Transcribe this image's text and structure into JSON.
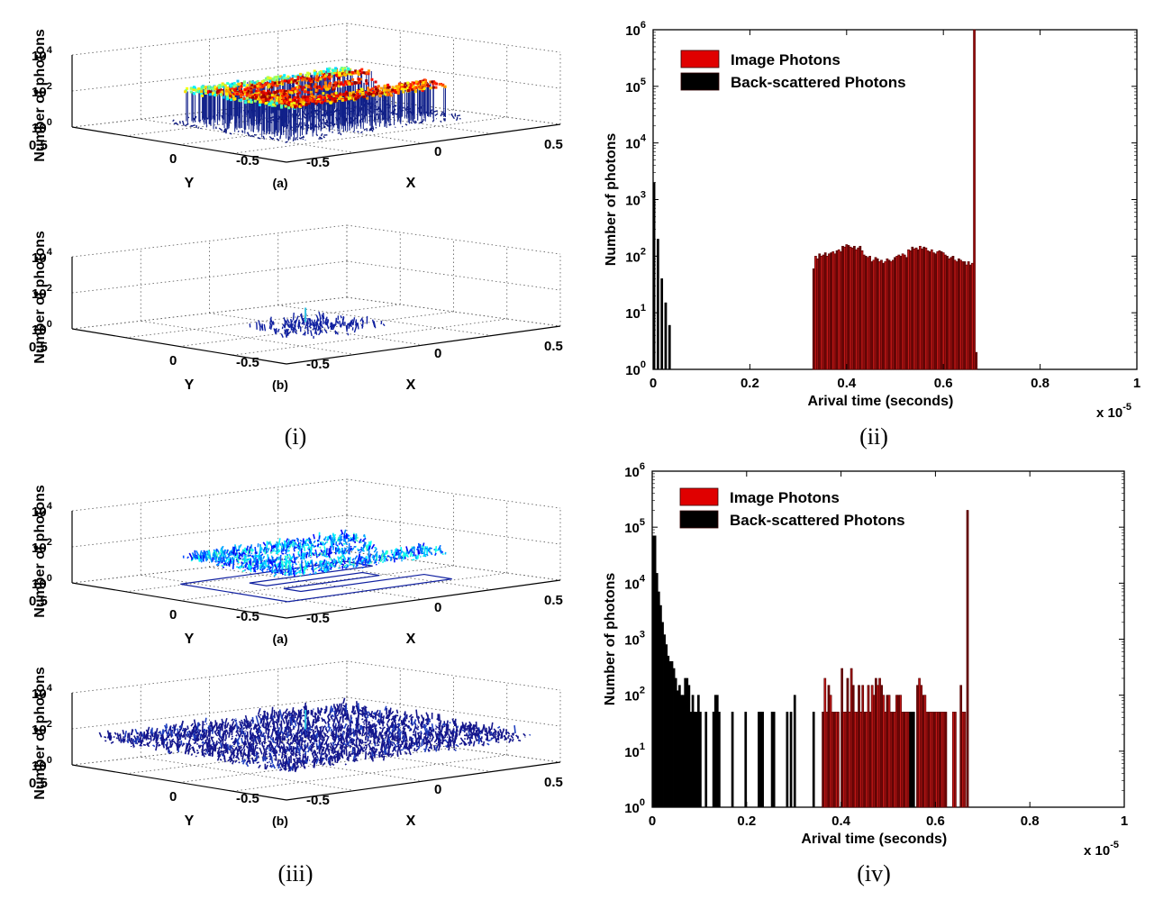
{
  "panels": [
    "(i)",
    "(ii)",
    "(iii)",
    "(iv)"
  ],
  "chart_data": [
    {
      "id": "i-a",
      "type": "surface3d",
      "panel": "(i)",
      "subplot_label": "(a)",
      "xlabel": "X",
      "ylabel": "Y",
      "zlabel": "Number of photons",
      "x_ticks": [
        "-0.5",
        "0",
        "0.5"
      ],
      "y_ticks": [
        "0.5",
        "0",
        "-0.5"
      ],
      "z_ticks": [
        "10^0",
        "10^2",
        "10^4"
      ],
      "zscale": "log",
      "zlim": [
        1,
        10000
      ],
      "description": "Image photons forming raised 'E'-like letter shape plateau at ~10^2 photons",
      "plateau_level": 100,
      "colormap": "jet"
    },
    {
      "id": "i-b",
      "type": "surface3d",
      "panel": "(i)",
      "subplot_label": "(b)",
      "xlabel": "X",
      "ylabel": "Y",
      "zlabel": "Number of photons",
      "x_ticks": [
        "-0.5",
        "0",
        "0.5"
      ],
      "y_ticks": [
        "0.5",
        "0",
        "-0.5"
      ],
      "z_ticks": [
        "10^0",
        "10^2",
        "10^4"
      ],
      "zscale": "log",
      "zlim": [
        1,
        10000
      ],
      "description": "Sparse back-scattered photons near center, peak ~10^1",
      "peak_level": 10,
      "colormap": "jet"
    },
    {
      "id": "ii",
      "type": "bar",
      "panel": "(ii)",
      "xlabel": "Arival time (seconds)",
      "ylabel": "Number of photons",
      "x_multiplier": "x 10^-5",
      "x_ticks": [
        "0",
        "0.2",
        "0.4",
        "0.6",
        "0.8",
        "1"
      ],
      "y_ticks": [
        "10^0",
        "10^1",
        "10^2",
        "10^3",
        "10^4",
        "10^5",
        "10^6"
      ],
      "xlim": [
        0,
        1
      ],
      "ylim": [
        1,
        1000000
      ],
      "yscale": "log",
      "legend": [
        {
          "name": "Image Photons",
          "color": "#e00000"
        },
        {
          "name": "Back-scattered Photons",
          "color": "#000000"
        }
      ],
      "legend_position": "top-left",
      "series": [
        {
          "name": "Back-scattered Photons",
          "color": "#000000",
          "x": [
            0.0,
            0.008,
            0.016,
            0.024,
            0.032
          ],
          "values": [
            2000,
            200,
            40,
            15,
            6
          ]
        },
        {
          "name": "Image Photons",
          "color": "#b01010",
          "x": [
            0.33,
            0.334,
            0.338,
            0.342,
            0.346,
            0.35,
            0.354,
            0.358,
            0.362,
            0.366,
            0.37,
            0.374,
            0.378,
            0.382,
            0.386,
            0.39,
            0.394,
            0.398,
            0.402,
            0.406,
            0.41,
            0.414,
            0.418,
            0.422,
            0.426,
            0.43,
            0.434,
            0.438,
            0.442,
            0.446,
            0.45,
            0.454,
            0.458,
            0.462,
            0.466,
            0.47,
            0.474,
            0.478,
            0.482,
            0.486,
            0.49,
            0.494,
            0.498,
            0.502,
            0.506,
            0.51,
            0.514,
            0.518,
            0.522,
            0.526,
            0.53,
            0.534,
            0.538,
            0.542,
            0.546,
            0.55,
            0.554,
            0.558,
            0.562,
            0.566,
            0.57,
            0.574,
            0.578,
            0.582,
            0.586,
            0.59,
            0.594,
            0.598,
            0.602,
            0.606,
            0.61,
            0.614,
            0.618,
            0.622,
            0.626,
            0.63,
            0.634,
            0.638,
            0.642,
            0.646,
            0.65,
            0.654,
            0.658,
            0.662,
            0.666,
            0.67
          ],
          "values": [
            60,
            100,
            90,
            110,
            100,
            105,
            115,
            100,
            110,
            115,
            120,
            110,
            125,
            130,
            120,
            150,
            145,
            160,
            155,
            145,
            140,
            150,
            130,
            140,
            150,
            125,
            105,
            100,
            95,
            100,
            80,
            85,
            95,
            90,
            80,
            85,
            75,
            80,
            90,
            85,
            80,
            85,
            95,
            100,
            105,
            100,
            110,
            105,
            95,
            130,
            125,
            145,
            135,
            140,
            130,
            150,
            135,
            145,
            140,
            125,
            120,
            130,
            115,
            110,
            120,
            125,
            120,
            115,
            105,
            100,
            90,
            95,
            100,
            85,
            80,
            90,
            85,
            80,
            80,
            70,
            80,
            70,
            75,
            1000000,
            2,
            0
          ]
        }
      ]
    },
    {
      "id": "iii-a",
      "type": "surface3d",
      "panel": "(iii)",
      "subplot_label": "(a)",
      "xlabel": "X",
      "ylabel": "Y",
      "zlabel": "Number of photons",
      "x_ticks": [
        "-0.5",
        "0",
        "0.5"
      ],
      "y_ticks": [
        "0.5",
        "0",
        "-0.5"
      ],
      "z_ticks": [
        "10^0",
        "10^2",
        "10^4"
      ],
      "zscale": "log",
      "zlim": [
        1,
        10000
      ],
      "description": "Noisy image photons ~10^1-10^2 with 'E'-shape outline drawn on floor",
      "colormap": "jet"
    },
    {
      "id": "iii-b",
      "type": "surface3d",
      "panel": "(iii)",
      "subplot_label": "(b)",
      "xlabel": "X",
      "ylabel": "Y",
      "zlabel": "Number of photons",
      "x_ticks": [
        "-0.5",
        "0",
        "0.5"
      ],
      "y_ticks": [
        "0.5",
        "0",
        "-0.5"
      ],
      "z_ticks": [
        "10^0",
        "10^2",
        "10^4"
      ],
      "zscale": "log",
      "zlim": [
        1,
        10000
      ],
      "description": "Dense back-scattered photon noise ~10^1-10^2 across entire plane, single peak near center",
      "colormap": "jet"
    },
    {
      "id": "iv",
      "type": "bar",
      "panel": "(iv)",
      "xlabel": "Arival time (seconds)",
      "ylabel": "Number of photons",
      "x_multiplier": "x 10^-5",
      "x_ticks": [
        "0",
        "0.2",
        "0.4",
        "0.6",
        "0.8",
        "1"
      ],
      "y_ticks": [
        "10^0",
        "10^1",
        "10^2",
        "10^3",
        "10^4",
        "10^5",
        "10^6"
      ],
      "xlim": [
        0,
        1
      ],
      "ylim": [
        1,
        1000000
      ],
      "yscale": "log",
      "legend": [
        {
          "name": "Image Photons",
          "color": "#e00000"
        },
        {
          "name": "Back-scattered Photons",
          "color": "#000000"
        }
      ],
      "legend_position": "top-left",
      "series": [
        {
          "name": "Back-scattered Photons",
          "color": "#000000",
          "x": [
            0.0,
            0.004,
            0.008,
            0.012,
            0.016,
            0.02,
            0.024,
            0.028,
            0.032,
            0.036,
            0.04,
            0.044,
            0.048,
            0.052,
            0.056,
            0.06,
            0.064,
            0.068,
            0.072,
            0.076,
            0.08,
            0.084,
            0.088,
            0.092,
            0.096,
            0.1,
            0.112,
            0.128,
            0.132,
            0.136,
            0.14,
            0.168,
            0.196,
            0.224,
            0.228,
            0.232,
            0.252,
            0.256,
            0.284,
            0.292,
            0.3,
            0.34,
            0.36,
            0.4,
            0.408,
            0.412,
            0.416,
            0.42,
            0.44,
            0.45,
            0.456,
            0.47,
            0.48,
            0.5,
            0.53,
            0.536,
            0.54,
            0.544,
            0.548,
            0.552
          ],
          "values": [
            70000,
            70000,
            15000,
            7000,
            4000,
            2000,
            1200,
            800,
            500,
            400,
            400,
            300,
            200,
            120,
            150,
            100,
            100,
            200,
            200,
            150,
            50,
            100,
            50,
            50,
            100,
            50,
            50,
            50,
            100,
            100,
            50,
            50,
            50,
            50,
            50,
            50,
            50,
            50,
            50,
            50,
            100,
            50,
            50,
            50,
            50,
            50,
            50,
            50,
            50,
            50,
            50,
            50,
            50,
            50,
            50,
            50,
            50,
            50,
            50,
            50
          ]
        },
        {
          "name": "Image Photons",
          "color": "#b01010",
          "x": [
            0.36,
            0.364,
            0.368,
            0.372,
            0.376,
            0.38,
            0.384,
            0.388,
            0.392,
            0.4,
            0.404,
            0.408,
            0.412,
            0.416,
            0.42,
            0.424,
            0.428,
            0.432,
            0.436,
            0.44,
            0.444,
            0.448,
            0.452,
            0.456,
            0.46,
            0.464,
            0.468,
            0.472,
            0.476,
            0.48,
            0.484,
            0.488,
            0.492,
            0.496,
            0.5,
            0.504,
            0.508,
            0.512,
            0.516,
            0.52,
            0.524,
            0.528,
            0.532,
            0.536,
            0.54,
            0.56,
            0.564,
            0.568,
            0.572,
            0.576,
            0.58,
            0.584,
            0.588,
            0.592,
            0.596,
            0.6,
            0.604,
            0.608,
            0.612,
            0.616,
            0.62,
            0.636,
            0.64,
            0.652,
            0.656,
            0.66,
            0.666
          ],
          "values": [
            50,
            200,
            50,
            150,
            100,
            50,
            50,
            50,
            50,
            300,
            50,
            50,
            200,
            50,
            300,
            150,
            50,
            50,
            150,
            50,
            150,
            50,
            50,
            150,
            50,
            150,
            100,
            200,
            150,
            200,
            150,
            100,
            50,
            100,
            100,
            50,
            50,
            50,
            100,
            100,
            100,
            50,
            50,
            50,
            50,
            150,
            200,
            150,
            100,
            100,
            50,
            50,
            50,
            50,
            50,
            50,
            50,
            50,
            50,
            50,
            50,
            50,
            50,
            150,
            50,
            50,
            200000
          ]
        }
      ]
    }
  ]
}
